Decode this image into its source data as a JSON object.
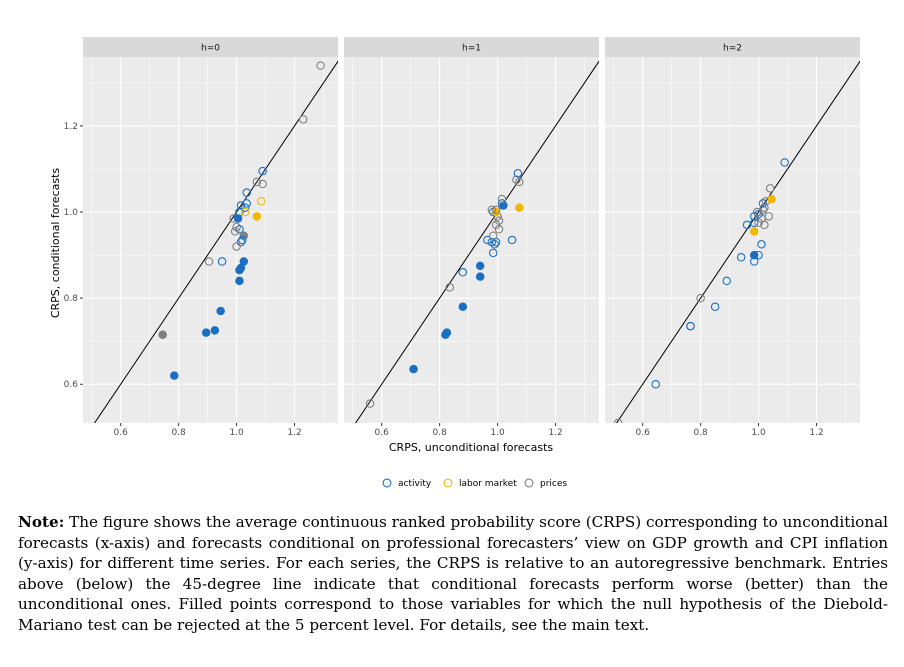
{
  "chart_data": {
    "type": "scatter",
    "xlabel": "CRPS, unconditional forecasts",
    "ylabel": "CRPS, conditional forecasts",
    "xlim": [
      0.47,
      1.35
    ],
    "ylim": [
      0.51,
      1.36
    ],
    "x_ticks": [
      "0.6",
      "0.8",
      "1.0",
      "1.2"
    ],
    "y_ticks": [
      "0.6",
      "0.8",
      "1.0",
      "1.2"
    ],
    "reference_line": "45-degree line",
    "colors": {
      "activity": "#1a6fc4",
      "labor market": "#f2b705",
      "prices": "#7f7f7f"
    },
    "legend": {
      "position": "bottom",
      "entries": [
        {
          "key": "activity",
          "label": "activity"
        },
        {
          "key": "labor market",
          "label": "labor market"
        },
        {
          "key": "prices",
          "label": "prices"
        }
      ]
    },
    "panels": [
      {
        "label": "h=0",
        "points": [
          {
            "x": 1.29,
            "y": 1.34,
            "group": "prices",
            "filled": false
          },
          {
            "x": 1.23,
            "y": 1.215,
            "group": "prices",
            "filled": false
          },
          {
            "x": 1.09,
            "y": 1.095,
            "group": "activity",
            "filled": false
          },
          {
            "x": 1.07,
            "y": 1.07,
            "group": "prices",
            "filled": false
          },
          {
            "x": 1.09,
            "y": 1.065,
            "group": "prices",
            "filled": false
          },
          {
            "x": 1.035,
            "y": 1.045,
            "group": "activity",
            "filled": false
          },
          {
            "x": 1.085,
            "y": 1.025,
            "group": "labor market",
            "filled": false
          },
          {
            "x": 1.035,
            "y": 1.02,
            "group": "activity",
            "filled": false
          },
          {
            "x": 1.015,
            "y": 1.015,
            "group": "activity",
            "filled": false
          },
          {
            "x": 1.03,
            "y": 1.01,
            "group": "activity",
            "filled": false
          },
          {
            "x": 1.01,
            "y": 1.0,
            "group": "activity",
            "filled": false
          },
          {
            "x": 1.03,
            "y": 1.0,
            "group": "labor market",
            "filled": false
          },
          {
            "x": 0.99,
            "y": 0.985,
            "group": "prices",
            "filled": false
          },
          {
            "x": 1.005,
            "y": 0.985,
            "group": "activity",
            "filled": true
          },
          {
            "x": 1.07,
            "y": 0.99,
            "group": "labor market",
            "filled": true
          },
          {
            "x": 1.0,
            "y": 0.965,
            "group": "prices",
            "filled": false
          },
          {
            "x": 1.01,
            "y": 0.96,
            "group": "activity",
            "filled": false
          },
          {
            "x": 0.995,
            "y": 0.955,
            "group": "prices",
            "filled": false
          },
          {
            "x": 1.025,
            "y": 0.945,
            "group": "prices",
            "filled": true
          },
          {
            "x": 1.02,
            "y": 0.935,
            "group": "activity",
            "filled": false
          },
          {
            "x": 1.015,
            "y": 0.93,
            "group": "activity",
            "filled": false
          },
          {
            "x": 1.0,
            "y": 0.92,
            "group": "prices",
            "filled": false
          },
          {
            "x": 0.905,
            "y": 0.885,
            "group": "prices",
            "filled": false
          },
          {
            "x": 0.95,
            "y": 0.885,
            "group": "activity",
            "filled": false
          },
          {
            "x": 1.025,
            "y": 0.885,
            "group": "activity",
            "filled": true
          },
          {
            "x": 1.01,
            "y": 0.865,
            "group": "activity",
            "filled": true
          },
          {
            "x": 1.015,
            "y": 0.87,
            "group": "activity",
            "filled": true
          },
          {
            "x": 1.01,
            "y": 0.84,
            "group": "activity",
            "filled": true
          },
          {
            "x": 0.945,
            "y": 0.77,
            "group": "activity",
            "filled": true
          },
          {
            "x": 0.925,
            "y": 0.725,
            "group": "activity",
            "filled": true
          },
          {
            "x": 0.895,
            "y": 0.72,
            "group": "activity",
            "filled": true
          },
          {
            "x": 0.745,
            "y": 0.715,
            "group": "prices",
            "filled": true
          },
          {
            "x": 0.785,
            "y": 0.62,
            "group": "activity",
            "filled": true
          }
        ]
      },
      {
        "label": "h=1",
        "points": [
          {
            "x": 0.56,
            "y": 0.555,
            "group": "prices",
            "filled": false
          },
          {
            "x": 0.71,
            "y": 0.635,
            "group": "activity",
            "filled": true
          },
          {
            "x": 0.825,
            "y": 0.72,
            "group": "activity",
            "filled": true
          },
          {
            "x": 0.82,
            "y": 0.715,
            "group": "activity",
            "filled": true
          },
          {
            "x": 0.88,
            "y": 0.78,
            "group": "activity",
            "filled": true
          },
          {
            "x": 0.835,
            "y": 0.825,
            "group": "prices",
            "filled": false
          },
          {
            "x": 0.88,
            "y": 0.86,
            "group": "activity",
            "filled": false
          },
          {
            "x": 0.94,
            "y": 0.85,
            "group": "activity",
            "filled": true
          },
          {
            "x": 0.94,
            "y": 0.875,
            "group": "activity",
            "filled": true
          },
          {
            "x": 0.985,
            "y": 0.905,
            "group": "activity",
            "filled": false
          },
          {
            "x": 0.98,
            "y": 0.93,
            "group": "activity",
            "filled": false
          },
          {
            "x": 0.99,
            "y": 0.925,
            "group": "activity",
            "filled": false
          },
          {
            "x": 0.995,
            "y": 0.93,
            "group": "activity",
            "filled": false
          },
          {
            "x": 0.965,
            "y": 0.935,
            "group": "activity",
            "filled": false
          },
          {
            "x": 1.05,
            "y": 0.935,
            "group": "activity",
            "filled": false
          },
          {
            "x": 0.985,
            "y": 0.945,
            "group": "prices",
            "filled": false
          },
          {
            "x": 1.005,
            "y": 0.96,
            "group": "prices",
            "filled": false
          },
          {
            "x": 0.995,
            "y": 0.97,
            "group": "prices",
            "filled": false
          },
          {
            "x": 1.005,
            "y": 0.98,
            "group": "prices",
            "filled": false
          },
          {
            "x": 1.0,
            "y": 0.99,
            "group": "prices",
            "filled": false
          },
          {
            "x": 0.985,
            "y": 1.0,
            "group": "activity",
            "filled": false
          },
          {
            "x": 0.995,
            "y": 1.0,
            "group": "labor market",
            "filled": true
          },
          {
            "x": 0.98,
            "y": 1.005,
            "group": "prices",
            "filled": false
          },
          {
            "x": 0.995,
            "y": 1.005,
            "group": "prices",
            "filled": false
          },
          {
            "x": 1.015,
            "y": 1.02,
            "group": "activity",
            "filled": false
          },
          {
            "x": 1.02,
            "y": 1.015,
            "group": "activity",
            "filled": true
          },
          {
            "x": 1.015,
            "y": 1.03,
            "group": "prices",
            "filled": false
          },
          {
            "x": 1.075,
            "y": 1.01,
            "group": "labor market",
            "filled": true
          },
          {
            "x": 1.065,
            "y": 1.075,
            "group": "prices",
            "filled": false
          },
          {
            "x": 1.075,
            "y": 1.07,
            "group": "prices",
            "filled": false
          },
          {
            "x": 1.07,
            "y": 1.09,
            "group": "activity",
            "filled": false
          }
        ]
      },
      {
        "label": "h=2",
        "points": [
          {
            "x": 0.515,
            "y": 0.51,
            "group": "prices",
            "filled": false
          },
          {
            "x": 0.645,
            "y": 0.6,
            "group": "activity",
            "filled": false
          },
          {
            "x": 0.765,
            "y": 0.735,
            "group": "activity",
            "filled": false
          },
          {
            "x": 0.765,
            "y": 0.735,
            "group": "activity",
            "filled": false
          },
          {
            "x": 0.85,
            "y": 0.78,
            "group": "activity",
            "filled": false
          },
          {
            "x": 0.8,
            "y": 0.8,
            "group": "prices",
            "filled": false
          },
          {
            "x": 0.89,
            "y": 0.84,
            "group": "activity",
            "filled": false
          },
          {
            "x": 0.94,
            "y": 0.895,
            "group": "activity",
            "filled": false
          },
          {
            "x": 0.985,
            "y": 0.885,
            "group": "activity",
            "filled": false
          },
          {
            "x": 0.985,
            "y": 0.9,
            "group": "activity",
            "filled": true
          },
          {
            "x": 1.0,
            "y": 0.9,
            "group": "activity",
            "filled": false
          },
          {
            "x": 1.01,
            "y": 0.925,
            "group": "activity",
            "filled": false
          },
          {
            "x": 0.985,
            "y": 0.955,
            "group": "labor market",
            "filled": true
          },
          {
            "x": 0.96,
            "y": 0.97,
            "group": "activity",
            "filled": false
          },
          {
            "x": 0.985,
            "y": 0.975,
            "group": "activity",
            "filled": false
          },
          {
            "x": 1.0,
            "y": 0.975,
            "group": "prices",
            "filled": false
          },
          {
            "x": 1.02,
            "y": 0.97,
            "group": "prices",
            "filled": false
          },
          {
            "x": 1.01,
            "y": 0.985,
            "group": "prices",
            "filled": false
          },
          {
            "x": 0.985,
            "y": 0.99,
            "group": "activity",
            "filled": false
          },
          {
            "x": 1.0,
            "y": 0.995,
            "group": "activity",
            "filled": false
          },
          {
            "x": 1.035,
            "y": 0.99,
            "group": "prices",
            "filled": false
          },
          {
            "x": 0.995,
            "y": 1.0,
            "group": "prices",
            "filled": false
          },
          {
            "x": 1.015,
            "y": 1.005,
            "group": "prices",
            "filled": false
          },
          {
            "x": 1.02,
            "y": 1.01,
            "group": "prices",
            "filled": false
          },
          {
            "x": 1.015,
            "y": 1.02,
            "group": "activity",
            "filled": false
          },
          {
            "x": 1.025,
            "y": 1.025,
            "group": "prices",
            "filled": false
          },
          {
            "x": 1.045,
            "y": 1.03,
            "group": "labor market",
            "filled": true
          },
          {
            "x": 1.04,
            "y": 1.055,
            "group": "prices",
            "filled": false
          },
          {
            "x": 1.09,
            "y": 1.115,
            "group": "activity",
            "filled": false
          }
        ]
      }
    ]
  },
  "note": {
    "label": "Note:",
    "text": "The figure shows the average continuous ranked probability score (CRPS) corresponding to unconditional forecasts (x-axis) and forecasts conditional on professional forecasters’ view on GDP growth and CPI inflation (y-axis) for different time series. For each series, the CRPS is relative to an autoregressive benchmark. Entries above (below) the 45-degree line indicate that conditional forecasts perform worse (better) than the unconditional ones. Filled points correspond to those variables for which the null hypothesis of the Diebold-Mariano test can be rejected at the 5 percent level. For details, see the main text."
  }
}
